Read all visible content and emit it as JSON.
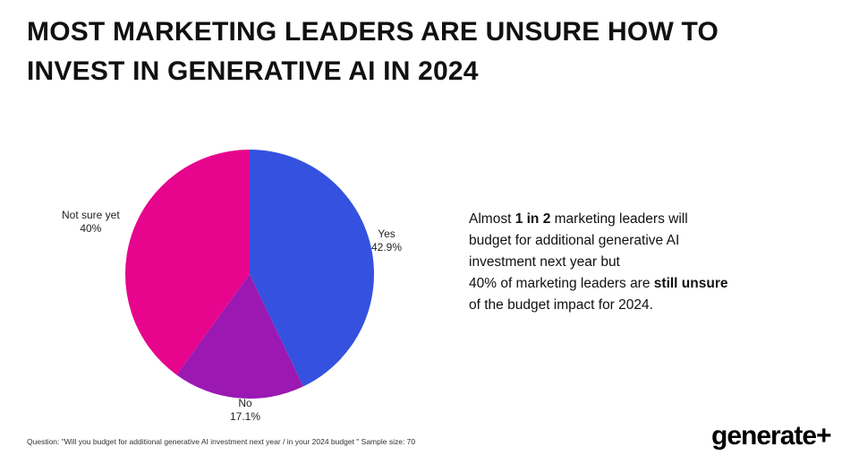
{
  "title": {
    "line1": "MOST MARKETING LEADERS ARE UNSURE HOW TO",
    "line2": "INVEST IN GENERATIVE AI IN 2024"
  },
  "chart_data": {
    "type": "pie",
    "title": "MOST MARKETING LEADERS ARE UNSURE HOW TO INVEST IN GENERATIVE AI IN 2024",
    "slices": [
      {
        "label": "Yes",
        "value": 42.9,
        "display": "42.9%",
        "color": "#3452df"
      },
      {
        "label": "No",
        "value": 17.1,
        "display": "17.1%",
        "color": "#9b18b3"
      },
      {
        "label": "Not sure yet",
        "value": 40,
        "display": "40%",
        "color": "#e6058c"
      }
    ],
    "start_angle_deg": 0,
    "direction": "clockwise"
  },
  "callout": {
    "l1_a": "Almost ",
    "l1_b": "1 in 2",
    "l1_c": " marketing leaders will",
    "l2": "budget for additional generative AI",
    "l3": "investment next year but",
    "l4_a": "40% of marketing leaders are ",
    "l4_b": "still unsure",
    "l5": "of the budget impact for 2024."
  },
  "footnote": "Question: \"Will you budget for additional generative AI investment next year / in your 2024 budget \" Sample size: 70",
  "logo": "generate+"
}
